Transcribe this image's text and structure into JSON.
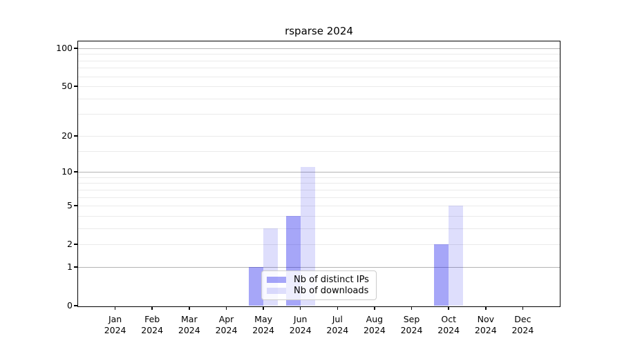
{
  "title": "rsparse 2024",
  "chart_data": {
    "type": "bar",
    "title": "rsparse 2024",
    "categories": [
      "Jan",
      "Feb",
      "Mar",
      "Apr",
      "May",
      "Jun",
      "Jul",
      "Aug",
      "Sep",
      "Oct",
      "Nov",
      "Dec"
    ],
    "year": "2024",
    "series": [
      {
        "name": "Nb of distinct IPs",
        "color": "rgba(0,0,235,0.35)",
        "values": [
          0,
          0,
          0,
          0,
          1,
          4,
          0,
          0,
          0,
          2,
          0,
          0
        ]
      },
      {
        "name": "Nb of downloads",
        "color": "rgba(0,0,235,0.13)",
        "values": [
          0,
          0,
          0,
          0,
          3,
          11,
          0,
          0,
          0,
          5,
          0,
          0
        ]
      }
    ],
    "yscale": "log1p",
    "ylim": [
      0,
      113
    ],
    "ytick_values": [
      0,
      1,
      2,
      5,
      10,
      20,
      50,
      100
    ],
    "major_decade_values": [
      1,
      10,
      100
    ],
    "minor_gridline_values": [
      3,
      4,
      6,
      7,
      8,
      9,
      15,
      30,
      40,
      60,
      70,
      80,
      90
    ],
    "grid": true,
    "legend_position": "lower-center",
    "xlabel": "",
    "ylabel": ""
  },
  "legend": {
    "items": [
      {
        "label": "Nb of distinct IPs"
      },
      {
        "label": "Nb of downloads"
      }
    ]
  },
  "colors": {
    "axis": "#000000",
    "grid_major_decade": "#b4b4b4",
    "grid_minor": "#eaeaea",
    "bar_distinct_ips": "rgba(0,0,235,0.35)",
    "bar_downloads": "rgba(0,0,235,0.13)",
    "background": "#ffffff"
  }
}
